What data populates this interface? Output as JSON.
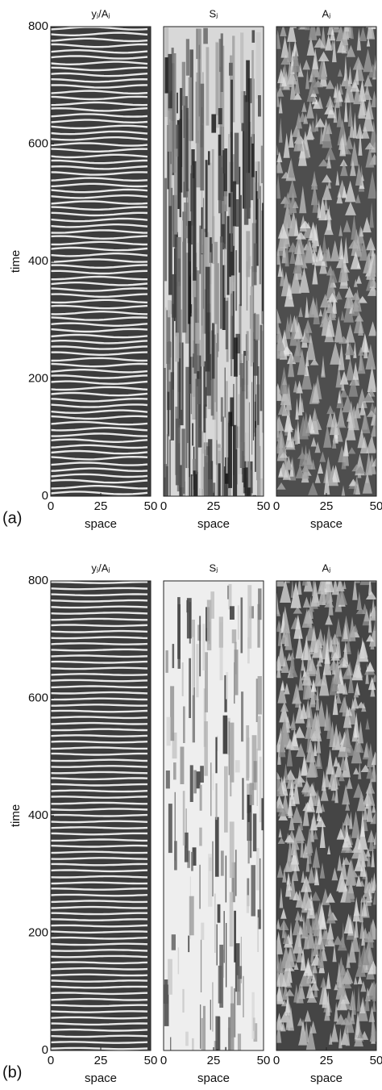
{
  "figure": {
    "panels": [
      {
        "label": "(a)",
        "ylabel": "time",
        "xlabel": "space",
        "ylim": [
          0,
          800
        ],
        "yticks": [
          0,
          200,
          400,
          600,
          800
        ],
        "xlim": [
          0,
          50
        ],
        "xticks": [
          0,
          25,
          50
        ],
        "subplots": [
          {
            "title": "yⱼ/Aⱼ"
          },
          {
            "title": "Sⱼ"
          },
          {
            "title": "Aⱼ"
          }
        ]
      },
      {
        "label": "(b)",
        "ylabel": "time",
        "xlabel": "space",
        "ylim": [
          0,
          800
        ],
        "yticks": [
          0,
          200,
          400,
          600,
          800
        ],
        "xlim": [
          0,
          50
        ],
        "xticks": [
          0,
          25,
          50
        ],
        "subplots": [
          {
            "title": "yⱼ/Aⱼ"
          },
          {
            "title": "Sⱼ"
          },
          {
            "title": "Aⱼ"
          }
        ]
      }
    ]
  }
}
